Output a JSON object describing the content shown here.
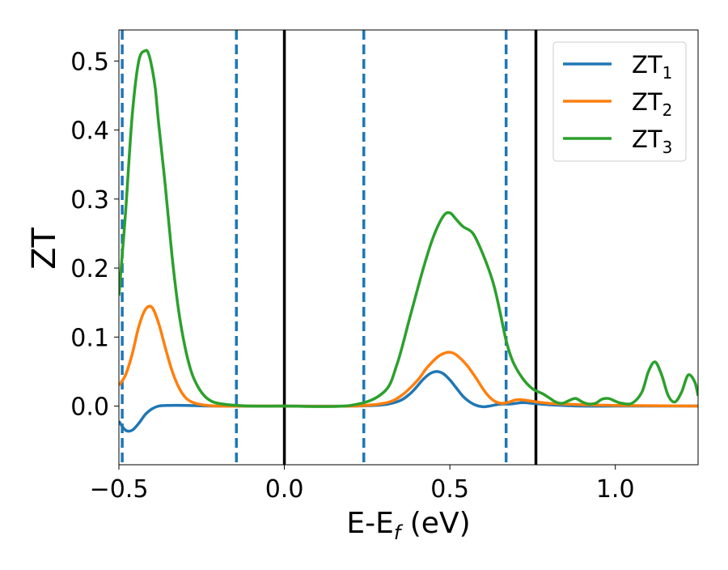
{
  "chart_data": {
    "type": "line",
    "title": "",
    "xlabel_main": "E-E",
    "xlabel_sub": "f",
    "xlabel_unit": " (eV)",
    "ylabel": "ZT",
    "xlim": [
      -0.5,
      1.25
    ],
    "ylim": [
      -0.085,
      0.545
    ],
    "grid": false,
    "legend_position": "top-right",
    "x_ticks": [
      {
        "value": -0.5,
        "label": "−0.5"
      },
      {
        "value": 0.0,
        "label": "0.0"
      },
      {
        "value": 0.5,
        "label": "0.5"
      },
      {
        "value": 1.0,
        "label": "1.0"
      }
    ],
    "y_ticks": [
      {
        "value": 0.0,
        "label": "0.0"
      },
      {
        "value": 0.1,
        "label": "0.1"
      },
      {
        "value": 0.2,
        "label": "0.2"
      },
      {
        "value": 0.3,
        "label": "0.3"
      },
      {
        "value": 0.4,
        "label": "0.4"
      },
      {
        "value": 0.5,
        "label": "0.5"
      }
    ],
    "vertical_lines": [
      {
        "x": -0.49,
        "style": "dashed",
        "color": "#1f77b4"
      },
      {
        "x": -0.145,
        "style": "dashed",
        "color": "#1f77b4"
      },
      {
        "x": 0.0,
        "style": "solid",
        "color": "#000000"
      },
      {
        "x": 0.24,
        "style": "dashed",
        "color": "#1f77b4"
      },
      {
        "x": 0.67,
        "style": "dashed",
        "color": "#1f77b4"
      },
      {
        "x": 0.76,
        "style": "solid",
        "color": "#000000"
      }
    ],
    "series": [
      {
        "name_main": "ZT",
        "name_sub": "1",
        "color": "#1f77b4",
        "x": [
          -0.5,
          -0.48,
          -0.46,
          -0.44,
          -0.42,
          -0.4,
          -0.38,
          -0.35,
          -0.3,
          -0.2,
          0.0,
          0.2,
          0.3,
          0.35,
          0.38,
          0.4,
          0.42,
          0.44,
          0.46,
          0.48,
          0.5,
          0.52,
          0.54,
          0.56,
          0.58,
          0.6,
          0.62,
          0.64,
          0.66,
          0.68,
          0.7,
          0.72,
          0.75,
          0.8,
          0.9,
          1.0,
          1.1,
          1.25
        ],
        "y": [
          -0.022,
          -0.035,
          -0.035,
          -0.025,
          -0.012,
          -0.004,
          0.0,
          0.001,
          0.001,
          0.0,
          0.0,
          0.0,
          0.002,
          0.008,
          0.018,
          0.028,
          0.039,
          0.047,
          0.05,
          0.047,
          0.038,
          0.026,
          0.014,
          0.006,
          0.001,
          -0.001,
          0.0,
          0.002,
          0.003,
          0.003,
          0.004,
          0.005,
          0.004,
          0.002,
          0.0,
          0.0,
          0.0,
          0.0
        ]
      },
      {
        "name_main": "ZT",
        "name_sub": "2",
        "color": "#ff7f0e",
        "x": [
          -0.5,
          -0.48,
          -0.46,
          -0.44,
          -0.42,
          -0.4,
          -0.38,
          -0.36,
          -0.34,
          -0.32,
          -0.3,
          -0.28,
          -0.25,
          -0.2,
          -0.1,
          0.0,
          0.2,
          0.3,
          0.35,
          0.4,
          0.43,
          0.46,
          0.48,
          0.5,
          0.52,
          0.55,
          0.58,
          0.6,
          0.62,
          0.64,
          0.66,
          0.68,
          0.7,
          0.72,
          0.75,
          0.8,
          0.9,
          1.0,
          1.25
        ],
        "y": [
          0.03,
          0.045,
          0.075,
          0.115,
          0.14,
          0.143,
          0.12,
          0.085,
          0.052,
          0.028,
          0.013,
          0.006,
          0.002,
          0.0,
          0.0,
          0.0,
          0.0,
          0.004,
          0.014,
          0.036,
          0.055,
          0.07,
          0.076,
          0.078,
          0.074,
          0.06,
          0.04,
          0.025,
          0.013,
          0.006,
          0.004,
          0.006,
          0.009,
          0.009,
          0.007,
          0.004,
          0.002,
          0.001,
          0.0
        ]
      },
      {
        "name_main": "ZT",
        "name_sub": "3",
        "color": "#2ca02c",
        "x": [
          -0.5,
          -0.48,
          -0.46,
          -0.44,
          -0.42,
          -0.41,
          -0.4,
          -0.39,
          -0.38,
          -0.36,
          -0.34,
          -0.32,
          -0.3,
          -0.28,
          -0.26,
          -0.24,
          -0.22,
          -0.2,
          -0.17,
          -0.14,
          -0.1,
          0.0,
          0.2,
          0.3,
          0.34,
          0.38,
          0.42,
          0.45,
          0.48,
          0.5,
          0.52,
          0.54,
          0.57,
          0.6,
          0.63,
          0.65,
          0.67,
          0.69,
          0.72,
          0.75,
          0.78,
          0.8,
          0.82,
          0.84,
          0.86,
          0.88,
          0.9,
          0.92,
          0.94,
          0.96,
          0.98,
          1.0,
          1.02,
          1.05,
          1.08,
          1.1,
          1.12,
          1.14,
          1.16,
          1.18,
          1.2,
          1.22,
          1.24,
          1.25
        ],
        "y": [
          0.16,
          0.28,
          0.42,
          0.5,
          0.515,
          0.51,
          0.49,
          0.46,
          0.41,
          0.32,
          0.22,
          0.14,
          0.085,
          0.048,
          0.027,
          0.014,
          0.007,
          0.004,
          0.002,
          0.001,
          0.0,
          0.0,
          0.001,
          0.02,
          0.06,
          0.13,
          0.2,
          0.245,
          0.275,
          0.28,
          0.27,
          0.26,
          0.25,
          0.22,
          0.18,
          0.14,
          0.095,
          0.065,
          0.04,
          0.025,
          0.018,
          0.012,
          0.006,
          0.004,
          0.008,
          0.011,
          0.006,
          0.003,
          0.004,
          0.01,
          0.011,
          0.007,
          0.004,
          0.004,
          0.02,
          0.05,
          0.064,
          0.045,
          0.015,
          0.006,
          0.02,
          0.045,
          0.035,
          0.015
        ]
      }
    ]
  }
}
